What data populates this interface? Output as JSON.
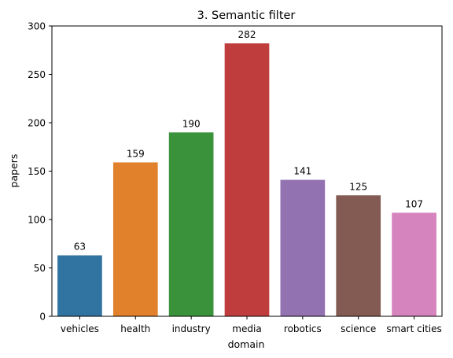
{
  "chart_data": {
    "type": "bar",
    "title": "3. Semantic filter",
    "xlabel": "domain",
    "ylabel": "papers",
    "categories": [
      "vehicles",
      "health",
      "industry",
      "media",
      "robotics",
      "science",
      "smart cities"
    ],
    "values": [
      63,
      159,
      190,
      282,
      141,
      125,
      107
    ],
    "colors": [
      "#3274a1",
      "#e1812c",
      "#3a923a",
      "#c03d3e",
      "#9372b2",
      "#845b53",
      "#d684bd"
    ],
    "ylim": [
      0,
      300
    ],
    "yticks": [
      0,
      50,
      100,
      150,
      200,
      250,
      300
    ],
    "grid": false,
    "legend": "none"
  }
}
